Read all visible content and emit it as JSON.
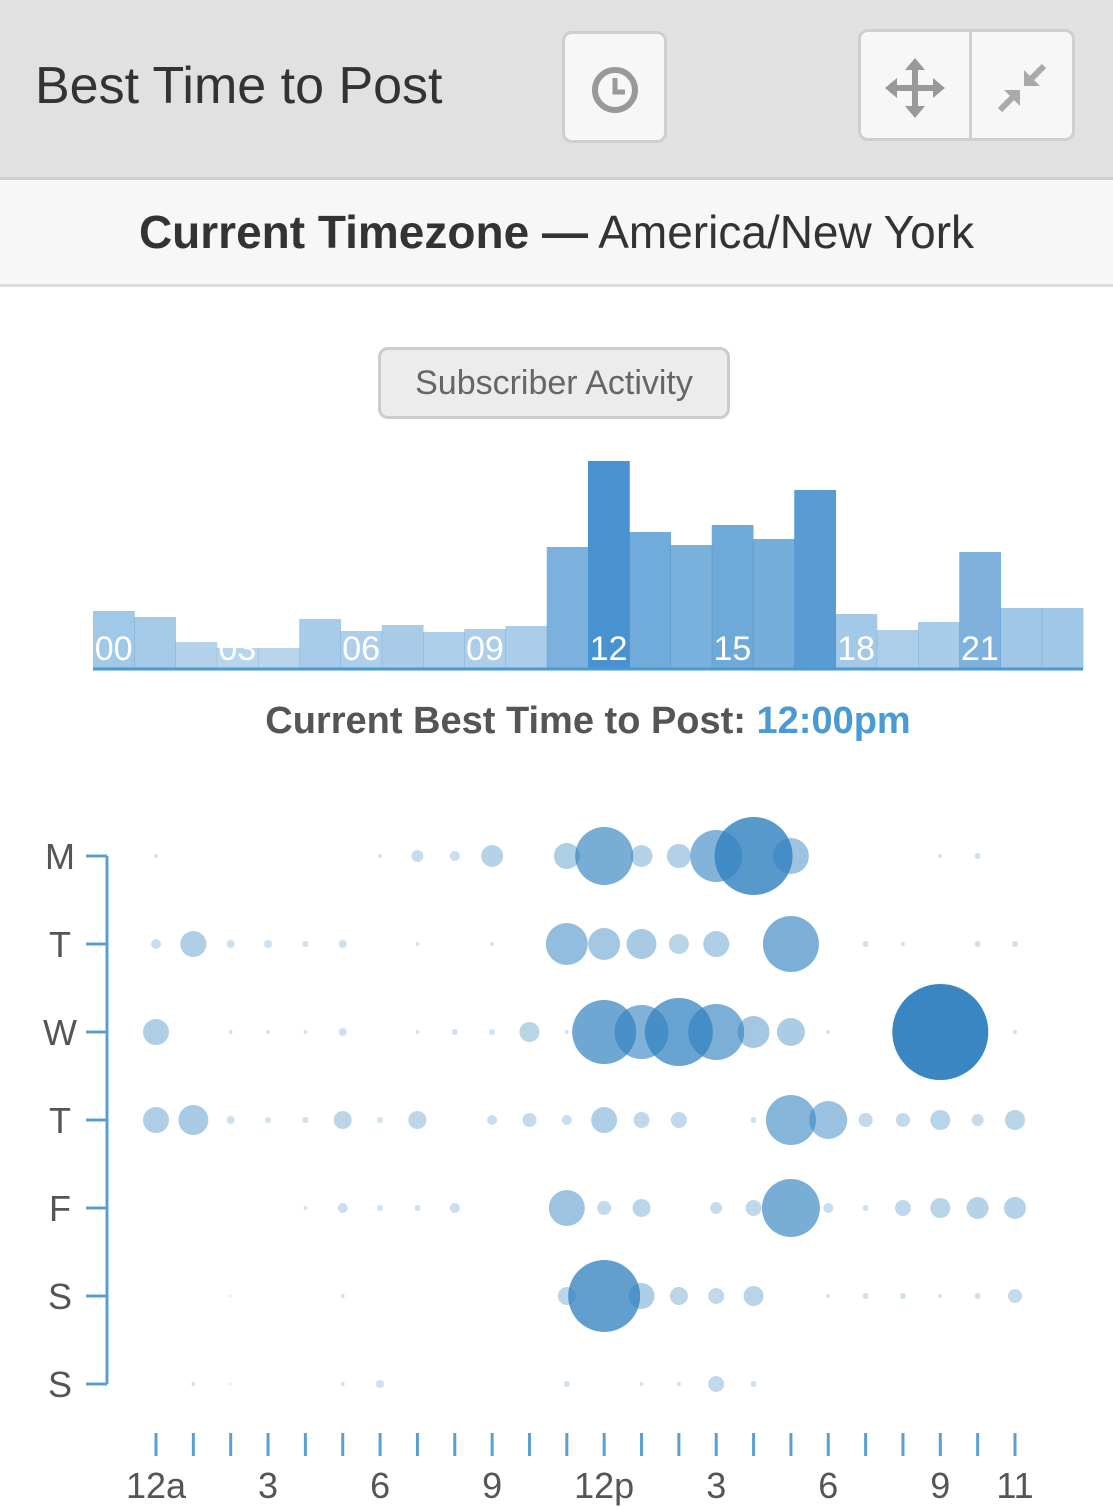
{
  "header": {
    "title": "Best Time to Post"
  },
  "timezone": {
    "label": "Current Timezone —",
    "value": "America/New York"
  },
  "activity_button": {
    "label": "Subscriber Activity"
  },
  "histogram": {
    "type": "bar",
    "categories": [
      "00",
      null,
      null,
      "03",
      null,
      null,
      "06",
      null,
      null,
      "09",
      null,
      null,
      "12",
      null,
      null,
      "15",
      null,
      null,
      "18",
      null,
      null,
      "21",
      null,
      null
    ],
    "values": [
      58,
      52,
      27,
      21,
      21,
      50,
      38,
      44,
      37,
      40,
      43,
      122,
      208,
      137,
      124,
      144,
      130,
      179,
      55,
      39,
      47,
      117,
      61,
      61
    ],
    "color": "#3d8ccc"
  },
  "best_time": {
    "label": "Current Best Time to Post:",
    "value": "12:00pm"
  },
  "bubble_chart": {
    "type": "bubble",
    "days": [
      "M",
      "T",
      "W",
      "T",
      "F",
      "S",
      "S"
    ],
    "xlim": [
      0,
      23
    ],
    "xtick_marks": [
      0,
      1,
      2,
      3,
      4,
      5,
      6,
      7,
      8,
      9,
      10,
      11,
      12,
      13,
      14,
      15,
      16,
      17,
      18,
      19,
      20,
      21,
      22,
      23
    ],
    "xticks": [
      {
        "value": 0,
        "label": "12a"
      },
      3,
      6,
      9,
      {
        "value": 12,
        "label": "12p"
      },
      {
        "value": 15,
        "label": "3"
      },
      {
        "value": 18,
        "label": "6"
      },
      {
        "value": 21,
        "label": "9"
      },
      {
        "value": 23,
        "label": "11"
      }
    ],
    "color": "#2f80bf",
    "sizes": [
      [
        2,
        0,
        0,
        0,
        0,
        0,
        2,
        6,
        5,
        11,
        0,
        13,
        29,
        11,
        12,
        26,
        39,
        18,
        0,
        0,
        0,
        2,
        3,
        0
      ],
      [
        5,
        13,
        4,
        4,
        3,
        4,
        0,
        2,
        0,
        2,
        0,
        21,
        16,
        15,
        10,
        13,
        0,
        28,
        0,
        3,
        2,
        0,
        3,
        3
      ],
      [
        13,
        0,
        2,
        2,
        2,
        4,
        0,
        2,
        3,
        3,
        10,
        2,
        32,
        27,
        34,
        28,
        16,
        14,
        2,
        0,
        0,
        48,
        0,
        2
      ],
      [
        13,
        15,
        4,
        3,
        3,
        9,
        3,
        9,
        0,
        5,
        7,
        5,
        13,
        8,
        8,
        0,
        3,
        25,
        19,
        7,
        7,
        10,
        6,
        10
      ],
      [
        0,
        0,
        0,
        0,
        2,
        5,
        3,
        3,
        5,
        0,
        0,
        18,
        7,
        9,
        0,
        6,
        8,
        29,
        5,
        3,
        8,
        10,
        11,
        11
      ],
      [
        0,
        0,
        1,
        0,
        0,
        2,
        0,
        0,
        0,
        0,
        0,
        9,
        36,
        13,
        9,
        8,
        10,
        0,
        2,
        3,
        3,
        2,
        3,
        7
      ],
      [
        0,
        2,
        1,
        0,
        0,
        2,
        4,
        0,
        0,
        0,
        0,
        3,
        0,
        2,
        2,
        8,
        3,
        0,
        0,
        0,
        0,
        0,
        0,
        0
      ]
    ]
  }
}
